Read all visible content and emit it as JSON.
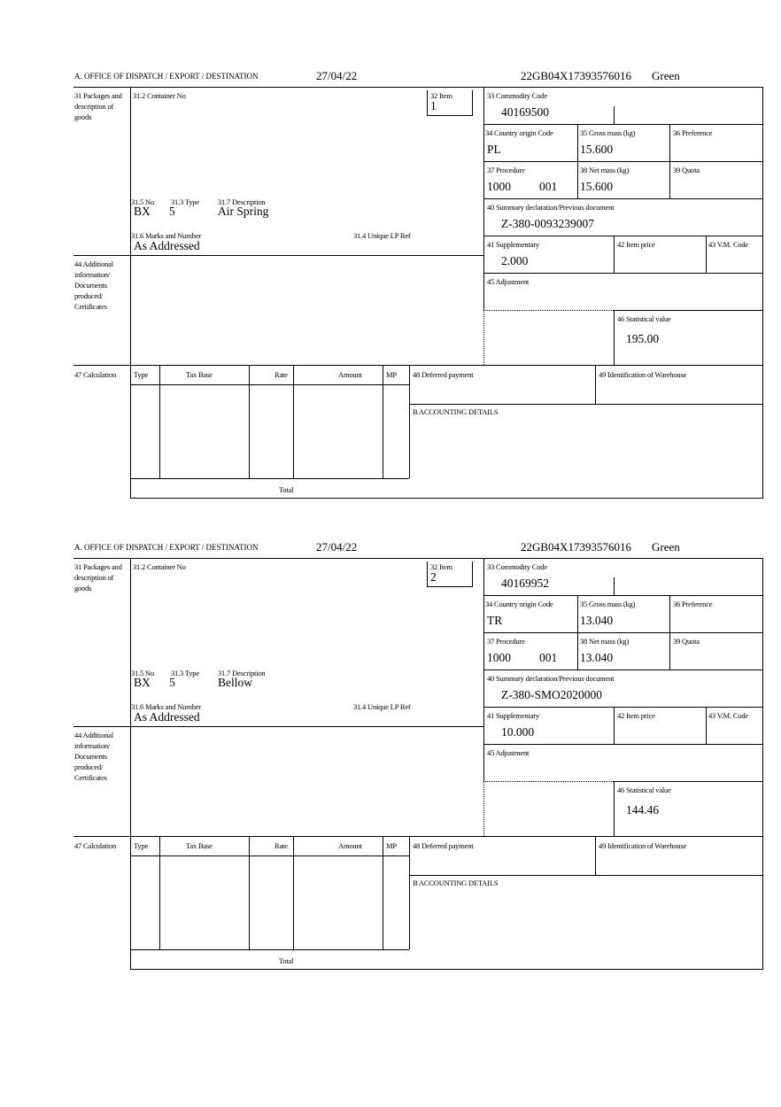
{
  "labels": {
    "office": "A.  OFFICE OF DISPATCH / EXPORT / DESTINATION",
    "packages": "31 Packages and description of goods",
    "container": "31.2 Container No",
    "item": "32 Item",
    "commodity": "33 Commodity Code",
    "country": "34 Country origin Code",
    "gross": "35 Gross mass (kg)",
    "preference": "36 Preference",
    "procedure": "37 Procedure",
    "net": "38 Net mass (kg)",
    "quota": "39 Quota",
    "summary": "40 Summary declaration/Previous document",
    "no": "31.5 No",
    "type": "31.3 Type",
    "description": "31.7 Description",
    "marks": "31.6 Marks and Number",
    "unique": "31.4 Unique LP Ref",
    "supplementary": "41 Supplementary",
    "item_price": "42 Item price",
    "vm_code": "43 V.M. Code",
    "additional": "44 Additional information/ Documents produced/ Certificates",
    "adjustment": "45 Adjustment",
    "statistical": "46 Statistical value",
    "calculation": "47 Calculation",
    "col_type": "Type",
    "col_tax_base": "Tax Base",
    "col_rate": "Rate",
    "col_amount": "Amount",
    "col_mp": "MP",
    "total": "Total",
    "deferred": "48 Deferred payment",
    "warehouse": "49 Identification of Warehouse",
    "accounting": "B ACCOUNTING DETAILS"
  },
  "forms": [
    {
      "date": "27/04/22",
      "reference": "22GB04X17393576016",
      "route": "Green",
      "item": "1",
      "commodity": "40169500",
      "country": "PL",
      "gross": "15.600",
      "procedure": "1000",
      "procedure_extra": "001",
      "net": "15.600",
      "summary": "Z-380-0093239007",
      "no": "BX",
      "type": "5",
      "description": "Air Spring",
      "marks": "As Addressed",
      "supplementary": "2.000",
      "statistical": "195.00"
    },
    {
      "date": "27/04/22",
      "reference": "22GB04X17393576016",
      "route": "Green",
      "item": "2",
      "commodity": "40169952",
      "country": "TR",
      "gross": "13.040",
      "procedure": "1000",
      "procedure_extra": "001",
      "net": "13.040",
      "summary": "Z-380-SMO2020000",
      "no": "BX",
      "type": "5",
      "description": "Bellow",
      "marks": "As Addressed",
      "supplementary": "10.000",
      "statistical": "144.46"
    }
  ]
}
